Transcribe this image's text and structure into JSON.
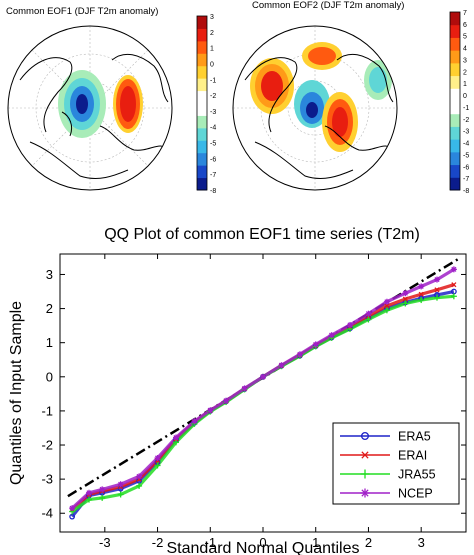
{
  "map_panels": [
    {
      "title": "Common EOF1 (DJF T2m anomaly)",
      "colorbar_ticks": [
        "3",
        "2",
        "1",
        "0",
        "-1",
        "-2",
        "-3",
        "-4",
        "-5",
        "-6",
        "-7",
        "-8"
      ],
      "colorbar_range": [
        -8,
        3
      ]
    },
    {
      "title": "Common EOF2 (DJF T2m anomaly)",
      "colorbar_ticks": [
        "7",
        "6",
        "5",
        "4",
        "3",
        "2",
        "1",
        "0",
        "-1",
        "-2",
        "-3",
        "-4",
        "-5",
        "-6",
        "-7",
        "-8"
      ],
      "colorbar_range": [
        -8,
        7
      ]
    }
  ],
  "colorbar_colors": [
    "#0b1c8c",
    "#1847c8",
    "#2a86dc",
    "#38b8e8",
    "#5fd6d6",
    "#a8ecb8",
    "#ffffff",
    "#ffffff",
    "#fff08a",
    "#ffd030",
    "#ff9a18",
    "#ff5a10",
    "#e81e10",
    "#b00c0c"
  ],
  "chart_data": {
    "type": "scatter",
    "title": "QQ Plot of common EOF1 time series (T2m)",
    "xlabel": "Standard Normal Quantiles",
    "ylabel": "Quantiles of Input Sample",
    "xlim": [
      -3.85,
      3.85
    ],
    "ylim": [
      -4.55,
      3.6
    ],
    "xticks": [
      -3,
      -2,
      -1,
      0,
      1,
      2,
      3
    ],
    "yticks": [
      -4,
      -3,
      -2,
      -1,
      0,
      1,
      2,
      3
    ],
    "grid": false,
    "legend_position": "bottom-right",
    "reference_line": {
      "style": "dash-dot",
      "color": "#000000",
      "x": [
        -3.7,
        3.7
      ],
      "y": [
        -3.5,
        3.45
      ]
    },
    "series": [
      {
        "name": "ERA5",
        "marker": "circle",
        "color": "#1f24c8",
        "x": [
          -3.62,
          -3.3,
          -3.05,
          -2.7,
          -2.35,
          -2.0,
          -1.65,
          -1.3,
          -1.0,
          -0.7,
          -0.35,
          0.0,
          0.35,
          0.7,
          1.0,
          1.3,
          1.65,
          2.0,
          2.35,
          2.7,
          3.0,
          3.3,
          3.62
        ],
        "y": [
          -4.1,
          -3.48,
          -3.4,
          -3.28,
          -3.05,
          -2.5,
          -1.85,
          -1.35,
          -1.0,
          -0.72,
          -0.36,
          0.0,
          0.32,
          0.62,
          0.9,
          1.15,
          1.42,
          1.72,
          2.0,
          2.18,
          2.3,
          2.4,
          2.5
        ]
      },
      {
        "name": "ERAI",
        "marker": "x",
        "color": "#e01818",
        "x": [
          -3.62,
          -3.3,
          -3.05,
          -2.7,
          -2.35,
          -2.0,
          -1.65,
          -1.3,
          -1.0,
          -0.7,
          -0.35,
          0.0,
          0.35,
          0.7,
          1.0,
          1.3,
          1.65,
          2.0,
          2.35,
          2.7,
          3.0,
          3.3,
          3.62
        ],
        "y": [
          -3.9,
          -3.45,
          -3.35,
          -3.22,
          -3.0,
          -2.45,
          -1.82,
          -1.33,
          -0.99,
          -0.71,
          -0.35,
          0.0,
          0.33,
          0.64,
          0.92,
          1.18,
          1.46,
          1.78,
          2.08,
          2.28,
          2.42,
          2.55,
          2.7
        ]
      },
      {
        "name": "JRA55",
        "marker": "plus",
        "color": "#22dd22",
        "x": [
          -3.62,
          -3.3,
          -3.05,
          -2.7,
          -2.35,
          -2.0,
          -1.65,
          -1.3,
          -1.0,
          -0.7,
          -0.35,
          0.0,
          0.35,
          0.7,
          1.0,
          1.3,
          1.65,
          2.0,
          2.35,
          2.7,
          3.0,
          3.3,
          3.62
        ],
        "y": [
          -3.95,
          -3.6,
          -3.55,
          -3.45,
          -3.2,
          -2.6,
          -1.92,
          -1.38,
          -1.02,
          -0.74,
          -0.37,
          0.0,
          0.31,
          0.61,
          0.89,
          1.14,
          1.4,
          1.68,
          1.95,
          2.15,
          2.25,
          2.32,
          2.36
        ]
      },
      {
        "name": "NCEP",
        "marker": "asterisk",
        "color": "#a020c8",
        "x": [
          -3.62,
          -3.3,
          -3.05,
          -2.7,
          -2.35,
          -2.0,
          -1.65,
          -1.3,
          -1.0,
          -0.7,
          -0.35,
          0.0,
          0.35,
          0.7,
          1.0,
          1.3,
          1.65,
          2.0,
          2.35,
          2.7,
          3.0,
          3.3,
          3.62
        ],
        "y": [
          -3.85,
          -3.4,
          -3.3,
          -3.15,
          -2.92,
          -2.38,
          -1.78,
          -1.3,
          -0.98,
          -0.7,
          -0.34,
          0.0,
          0.34,
          0.66,
          0.95,
          1.22,
          1.52,
          1.85,
          2.2,
          2.45,
          2.65,
          2.85,
          3.15
        ]
      }
    ]
  }
}
